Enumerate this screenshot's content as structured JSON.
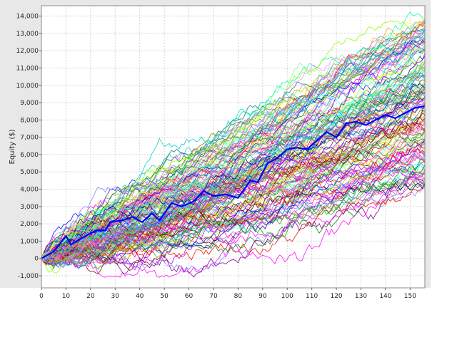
{
  "chart_data": {
    "type": "line",
    "title": "",
    "xlabel": "",
    "ylabel": "Equity ($)",
    "xlim": [
      0,
      156
    ],
    "ylim": [
      -1700,
      14600
    ],
    "x_ticks": [
      0,
      10,
      20,
      30,
      40,
      50,
      60,
      70,
      80,
      90,
      100,
      110,
      120,
      130,
      140,
      150
    ],
    "x_tick_labels": [
      "0",
      "10",
      "20",
      "30",
      "40",
      "50",
      "60",
      "70",
      "80",
      "90",
      "100",
      "110",
      "120",
      "130",
      "140",
      "150"
    ],
    "y_ticks": [
      -1000,
      0,
      1000,
      2000,
      3000,
      4000,
      5000,
      6000,
      7000,
      8000,
      9000,
      10000,
      11000,
      12000,
      13000,
      14000
    ],
    "y_tick_labels": [
      "-1,000",
      "0",
      "1,000",
      "2,000",
      "3,000",
      "4,000",
      "5,000",
      "6,000",
      "7,000",
      "8,000",
      "9,000",
      "10,000",
      "11,000",
      "12,000",
      "13,000",
      "14,000"
    ],
    "grid": true,
    "legend": "none",
    "background": "#ffffff",
    "highlight_series": {
      "color": "#0000ff",
      "points": [
        [
          0,
          0
        ],
        [
          5,
          400
        ],
        [
          10,
          1300
        ],
        [
          12,
          800
        ],
        [
          18,
          1300
        ],
        [
          22,
          1600
        ],
        [
          26,
          1600
        ],
        [
          28,
          2100
        ],
        [
          33,
          2200
        ],
        [
          37,
          2400
        ],
        [
          41,
          2100
        ],
        [
          45,
          2600
        ],
        [
          48,
          2200
        ],
        [
          53,
          3200
        ],
        [
          57,
          3000
        ],
        [
          62,
          3300
        ],
        [
          66,
          3900
        ],
        [
          70,
          3600
        ],
        [
          75,
          3700
        ],
        [
          80,
          3500
        ],
        [
          85,
          4500
        ],
        [
          88,
          4400
        ],
        [
          92,
          5500
        ],
        [
          96,
          5800
        ],
        [
          100,
          6300
        ],
        [
          104,
          6400
        ],
        [
          108,
          6300
        ],
        [
          112,
          6800
        ],
        [
          116,
          7300
        ],
        [
          120,
          7000
        ],
        [
          124,
          7800
        ],
        [
          128,
          7900
        ],
        [
          132,
          7700
        ],
        [
          136,
          8000
        ],
        [
          140,
          8300
        ],
        [
          144,
          8100
        ],
        [
          148,
          8400
        ],
        [
          152,
          8700
        ],
        [
          156,
          8800
        ]
      ]
    },
    "ensemble": {
      "count": 150,
      "steps": 156,
      "start": 0,
      "final_range": [
        4000,
        13900
      ],
      "min_value": -1100,
      "colors": [
        "#ff0000",
        "#00aa00",
        "#0000ff",
        "#ff00ff",
        "#00cccc",
        "#cccc00",
        "#ff8080",
        "#80ff80",
        "#8080ff",
        "#ff80ff",
        "#808080",
        "#800000",
        "#008000",
        "#000080",
        "#808000",
        "#800080",
        "#008080",
        "#ffaa00",
        "#00ffaa",
        "#aa00ff",
        "#ff0088",
        "#88ff00",
        "#0088ff",
        "#aaaa55",
        "#55aaaa",
        "#aa55aa",
        "#ffff55",
        "#55ffff",
        "#ff55ff",
        "#999999"
      ]
    }
  }
}
